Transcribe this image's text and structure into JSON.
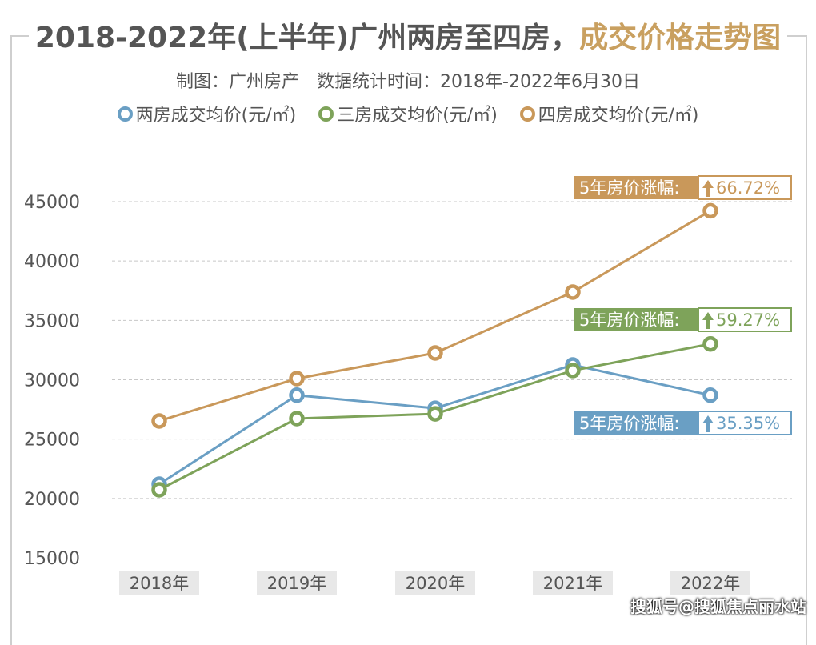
{
  "title": {
    "main": "2018-2022年(上半年)广州两房至四房，",
    "accent": "成交价格走势图"
  },
  "subtitle": "制图：广州房产　数据统计时间：2018年-2022年6月30日",
  "watermark": "搜狐号@搜狐焦点丽水站",
  "chart_data": {
    "type": "line",
    "categories": [
      "2018年",
      "2019年",
      "2020年",
      "2021年",
      "2022年"
    ],
    "ylim": [
      15000,
      45000
    ],
    "yticks": [
      15000,
      20000,
      25000,
      30000,
      35000,
      40000,
      45000
    ],
    "grid": true,
    "legend_placement": "top",
    "series": [
      {
        "name": "两房成交均价(元/㎡)",
        "color": "#6a9fc4",
        "values": [
          21200,
          28700,
          27600,
          31250,
          28700
        ],
        "growth_label": "5年房价涨幅:",
        "growth": "35.35%"
      },
      {
        "name": "三房成交均价(元/㎡)",
        "color": "#7ea35a",
        "values": [
          20730,
          26730,
          27130,
          30780,
          33020
        ],
        "growth_label": "5年房价涨幅:",
        "growth": "59.27%"
      },
      {
        "name": "四房成交均价(元/㎡)",
        "color": "#c9985a",
        "values": [
          26530,
          30100,
          32260,
          37380,
          44230
        ],
        "growth_label": "5年房价涨幅:",
        "growth": "66.72%"
      }
    ]
  }
}
